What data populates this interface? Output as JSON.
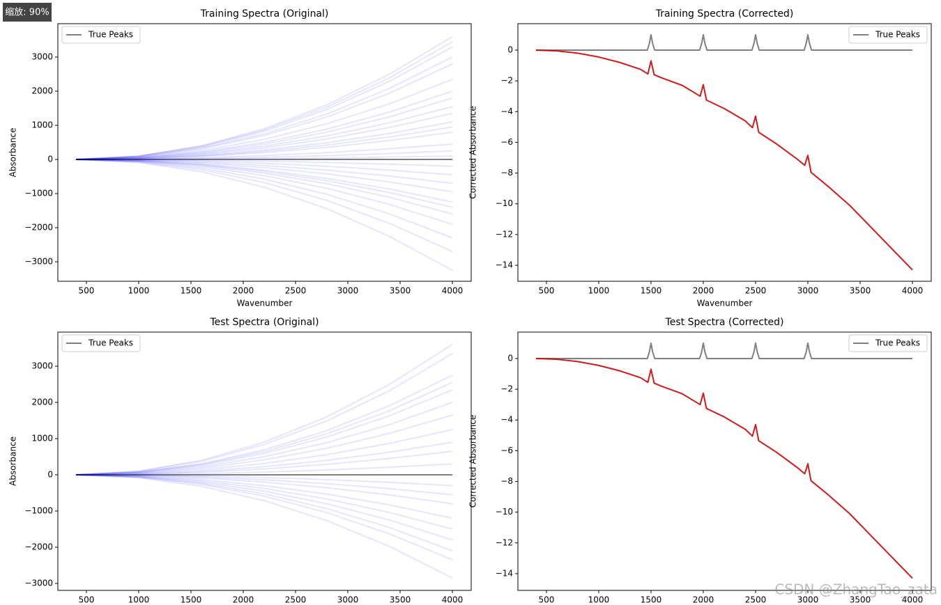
{
  "overlay": {
    "zoom": "缩放: 90%",
    "watermark": "CSDN @ZhangTao_zata"
  },
  "chart_data": [
    {
      "type": "line",
      "title": "Training Spectra (Original)",
      "xlabel": "Wavenumber",
      "ylabel": "Absorbance",
      "legend": "upper left",
      "xlim": [
        227,
        4180
      ],
      "ylim": [
        -3571,
        3980
      ],
      "xticks": [
        500,
        1000,
        1500,
        2000,
        2500,
        3000,
        3500,
        4000
      ],
      "yticks": [
        {
          "value": -3000,
          "label": "−3000"
        },
        {
          "value": -2000,
          "label": "−2000"
        },
        {
          "value": -1000,
          "label": "−1000"
        },
        0,
        1000,
        2000,
        3000
      ],
      "x": [
        400,
        1000,
        1600,
        2200,
        2800,
        3400,
        4000
      ],
      "series": [
        {
          "color": "#0000ff",
          "alpha": 0.1,
          "values": [
            0,
            100,
            400,
            900,
            1600,
            2500,
            3600
          ]
        },
        {
          "color": "#0000ff",
          "alpha": 0.1,
          "values": [
            0,
            96,
            383,
            863,
            1533,
            2396,
            3450
          ]
        },
        {
          "color": "#0000ff",
          "alpha": 0.1,
          "values": [
            0,
            92,
            367,
            825,
            1467,
            2292,
            3300
          ]
        },
        {
          "color": "#0000ff",
          "alpha": 0.1,
          "values": [
            0,
            83,
            333,
            750,
            1333,
            2083,
            3000
          ]
        },
        {
          "color": "#0000ff",
          "alpha": 0.1,
          "values": [
            0,
            78,
            311,
            700,
            1244,
            1944,
            2800
          ]
        },
        {
          "color": "#0000ff",
          "alpha": 0.1,
          "values": [
            0,
            65,
            261,
            588,
            1044,
            1632,
            2350
          ]
        },
        {
          "color": "#0000ff",
          "alpha": 0.1,
          "values": [
            0,
            56,
            222,
            500,
            889,
            1389,
            2000
          ]
        },
        {
          "color": "#0000ff",
          "alpha": 0.1,
          "values": [
            0,
            50,
            200,
            450,
            800,
            1250,
            1800
          ]
        },
        {
          "color": "#0000ff",
          "alpha": 0.1,
          "values": [
            0,
            43,
            172,
            388,
            689,
            1076,
            1550
          ]
        },
        {
          "color": "#0000ff",
          "alpha": 0.1,
          "values": [
            0,
            38,
            150,
            338,
            600,
            938,
            1350
          ]
        },
        {
          "color": "#0000ff",
          "alpha": 0.1,
          "values": [
            0,
            31,
            122,
            275,
            489,
            764,
            1100
          ]
        },
        {
          "color": "#0000ff",
          "alpha": 0.1,
          "values": [
            0,
            26,
            106,
            238,
            422,
            660,
            950
          ]
        },
        {
          "color": "#0000ff",
          "alpha": 0.1,
          "values": [
            0,
            22,
            89,
            200,
            356,
            556,
            800
          ]
        },
        {
          "color": "#0000ff",
          "alpha": 0.1,
          "values": [
            0,
            13,
            50,
            113,
            200,
            313,
            450
          ]
        },
        {
          "color": "#0000ff",
          "alpha": 0.1,
          "values": [
            0,
            7,
            28,
            63,
            111,
            174,
            250
          ]
        },
        {
          "color": "#0000ff",
          "alpha": 0.1,
          "values": [
            0,
            3,
            11,
            25,
            44,
            69,
            100
          ]
        },
        {
          "color": "#0000ff",
          "alpha": 0.1,
          "values": [
            0,
            -6,
            -22,
            -50,
            -89,
            -139,
            -200
          ]
        },
        {
          "color": "#0000ff",
          "alpha": 0.1,
          "values": [
            0,
            -13,
            -50,
            -113,
            -200,
            -313,
            -450
          ]
        },
        {
          "color": "#0000ff",
          "alpha": 0.1,
          "values": [
            0,
            -19,
            -78,
            -175,
            -311,
            -486,
            -700
          ]
        },
        {
          "color": "#0000ff",
          "alpha": 0.1,
          "values": [
            0,
            -26,
            -106,
            -238,
            -422,
            -660,
            -950
          ]
        },
        {
          "color": "#0000ff",
          "alpha": 0.1,
          "values": [
            0,
            -35,
            -139,
            -313,
            -556,
            -868,
            -1250
          ]
        },
        {
          "color": "#0000ff",
          "alpha": 0.1,
          "values": [
            0,
            -39,
            -156,
            -350,
            -622,
            -972,
            -1400
          ]
        },
        {
          "color": "#0000ff",
          "alpha": 0.1,
          "values": [
            0,
            -44,
            -178,
            -400,
            -711,
            -1111,
            -1600
          ]
        },
        {
          "color": "#0000ff",
          "alpha": 0.1,
          "values": [
            0,
            -53,
            -211,
            -475,
            -844,
            -1319,
            -1900
          ]
        },
        {
          "color": "#0000ff",
          "alpha": 0.1,
          "values": [
            0,
            -64,
            -256,
            -575,
            -1022,
            -1597,
            -2300
          ]
        },
        {
          "color": "#0000ff",
          "alpha": 0.1,
          "values": [
            0,
            -75,
            -300,
            -675,
            -1200,
            -1875,
            -2700
          ]
        },
        {
          "color": "#0000ff",
          "alpha": 0.1,
          "values": [
            0,
            -90,
            -361,
            -813,
            -1444,
            -2257,
            -3250
          ]
        },
        {
          "name": "True Peaks",
          "color": "#000000",
          "alpha": 0.5,
          "values": [
            0,
            0,
            0,
            0,
            0,
            0,
            0
          ]
        }
      ]
    },
    {
      "type": "line",
      "title": "Training Spectra (Corrected)",
      "xlabel": "Wavenumber",
      "ylabel": "Corrected Absorbance",
      "legend": "upper right",
      "xlim": [
        227,
        4180
      ],
      "ylim": [
        -15.04,
        1.72
      ],
      "xticks": [
        500,
        1000,
        1500,
        2000,
        2500,
        3000,
        3500,
        4000
      ],
      "yticks": [
        {
          "value": -14,
          "label": "−14"
        },
        {
          "value": -12,
          "label": "−12"
        },
        {
          "value": -10,
          "label": "−10"
        },
        {
          "value": -8,
          "label": "−8"
        },
        {
          "value": -6,
          "label": "−6"
        },
        {
          "value": -4,
          "label": "−4"
        },
        {
          "value": -2,
          "label": "−2"
        },
        0
      ],
      "series": [
        {
          "name": "True Peaks",
          "color": "#000000",
          "alpha": 0.5,
          "x": [
            400,
            1465,
            1485,
            1500,
            1515,
            1535,
            1965,
            1985,
            2000,
            2015,
            2035,
            2465,
            2485,
            2500,
            2515,
            2535,
            2965,
            2985,
            3000,
            3015,
            3035,
            4000
          ],
          "values": [
            0,
            0,
            0.45,
            1,
            0.45,
            0,
            0,
            0.45,
            1,
            0.45,
            0,
            0,
            0.45,
            1,
            0.45,
            0,
            0,
            0.45,
            1,
            0.45,
            0,
            0
          ]
        },
        {
          "color": "#cc0000",
          "alpha": 0.9,
          "x": [
            400,
            600,
            800,
            1000,
            1200,
            1400,
            1470,
            1500,
            1530,
            1600,
            1800,
            1970,
            2000,
            2030,
            2200,
            2400,
            2470,
            2500,
            2530,
            2700,
            2900,
            2970,
            3000,
            3030,
            3200,
            3400,
            3600,
            3800,
            4000
          ],
          "values": [
            0,
            -0.05,
            -0.2,
            -0.45,
            -0.8,
            -1.25,
            -1.55,
            -0.7,
            -1.6,
            -1.8,
            -2.3,
            -3.0,
            -2.25,
            -3.25,
            -3.8,
            -4.6,
            -5.05,
            -4.3,
            -5.35,
            -6.1,
            -7.1,
            -7.5,
            -6.85,
            -7.95,
            -8.9,
            -10.1,
            -11.5,
            -12.9,
            -14.3
          ]
        }
      ]
    },
    {
      "type": "line",
      "title": "Test Spectra (Original)",
      "ylabel": "Absorbance",
      "legend": "upper left",
      "xlim": [
        227,
        4180
      ],
      "ylim": [
        -3192,
        3942
      ],
      "xticks": [
        500,
        1000,
        1500,
        2000,
        2500,
        3000,
        3500,
        4000
      ],
      "yticks": [
        {
          "value": -3000,
          "label": "−3000"
        },
        {
          "value": -2000,
          "label": "−2000"
        },
        {
          "value": -1000,
          "label": "−1000"
        },
        0,
        1000,
        2000,
        3000
      ],
      "x": [
        400,
        1000,
        1600,
        2200,
        2800,
        3400,
        4000
      ],
      "series": [
        {
          "color": "#0000ff",
          "alpha": 0.1,
          "values": [
            0,
            100,
            400,
            900,
            1600,
            2500,
            3600
          ]
        },
        {
          "color": "#0000ff",
          "alpha": 0.1,
          "values": [
            0,
            93,
            372,
            838,
            1489,
            2326,
            3350
          ]
        },
        {
          "color": "#0000ff",
          "alpha": 0.1,
          "values": [
            0,
            76,
            306,
            688,
            1222,
            1910,
            2750
          ]
        },
        {
          "color": "#0000ff",
          "alpha": 0.1,
          "values": [
            0,
            71,
            283,
            638,
            1133,
            1771,
            2550
          ]
        },
        {
          "color": "#0000ff",
          "alpha": 0.1,
          "values": [
            0,
            65,
            261,
            588,
            1044,
            1632,
            2350
          ]
        },
        {
          "color": "#0000ff",
          "alpha": 0.1,
          "values": [
            0,
            56,
            222,
            500,
            889,
            1389,
            2000
          ]
        },
        {
          "color": "#0000ff",
          "alpha": 0.1,
          "values": [
            0,
            46,
            183,
            413,
            733,
            1146,
            1650
          ]
        },
        {
          "color": "#0000ff",
          "alpha": 0.1,
          "values": [
            0,
            35,
            139,
            313,
            556,
            868,
            1250
          ]
        },
        {
          "color": "#0000ff",
          "alpha": 0.1,
          "values": [
            0,
            25,
            100,
            225,
            400,
            625,
            900
          ]
        },
        {
          "color": "#0000ff",
          "alpha": 0.1,
          "values": [
            0,
            18,
            72,
            163,
            289,
            451,
            650
          ]
        },
        {
          "color": "#0000ff",
          "alpha": 0.1,
          "values": [
            0,
            8,
            33,
            75,
            133,
            208,
            300
          ]
        },
        {
          "color": "#0000ff",
          "alpha": 0.1,
          "values": [
            0,
            -8,
            -33,
            -75,
            -133,
            -208,
            -300
          ]
        },
        {
          "color": "#0000ff",
          "alpha": 0.1,
          "values": [
            0,
            -15,
            -61,
            -138,
            -244,
            -382,
            -550
          ]
        },
        {
          "color": "#0000ff",
          "alpha": 0.1,
          "values": [
            0,
            -22,
            -89,
            -200,
            -356,
            -556,
            -800
          ]
        },
        {
          "color": "#0000ff",
          "alpha": 0.1,
          "values": [
            0,
            -33,
            -133,
            -300,
            -533,
            -833,
            -1200
          ]
        },
        {
          "color": "#0000ff",
          "alpha": 0.1,
          "values": [
            0,
            -42,
            -167,
            -375,
            -667,
            -1042,
            -1500
          ]
        },
        {
          "color": "#0000ff",
          "alpha": 0.1,
          "values": [
            0,
            -50,
            -200,
            -450,
            -800,
            -1250,
            -1800
          ]
        },
        {
          "color": "#0000ff",
          "alpha": 0.1,
          "values": [
            0,
            -58,
            -233,
            -525,
            -933,
            -1458,
            -2100
          ]
        },
        {
          "color": "#0000ff",
          "alpha": 0.1,
          "values": [
            0,
            -65,
            -261,
            -588,
            -1044,
            -1632,
            -2350
          ]
        },
        {
          "color": "#0000ff",
          "alpha": 0.1,
          "values": [
            0,
            -79,
            -317,
            -713,
            -1267,
            -1979,
            -2850
          ]
        },
        {
          "name": "True Peaks",
          "color": "#000000",
          "alpha": 0.5,
          "values": [
            0,
            0,
            0,
            0,
            0,
            0,
            0
          ]
        }
      ]
    },
    {
      "type": "line",
      "title": "Test Spectra (Corrected)",
      "ylabel": "Corrected Absorbance",
      "legend": "upper right",
      "xlim": [
        227,
        4180
      ],
      "ylim": [
        -15.09,
        1.72
      ],
      "xticks": [
        500,
        1000,
        1500,
        2000,
        2500,
        3000,
        3500,
        4000
      ],
      "yticks": [
        {
          "value": -14,
          "label": "−14"
        },
        {
          "value": -12,
          "label": "−12"
        },
        {
          "value": -10,
          "label": "−10"
        },
        {
          "value": -8,
          "label": "−8"
        },
        {
          "value": -6,
          "label": "−6"
        },
        {
          "value": -4,
          "label": "−4"
        },
        {
          "value": -2,
          "label": "−2"
        },
        0
      ],
      "series": [
        {
          "name": "True Peaks",
          "color": "#000000",
          "alpha": 0.5,
          "x": [
            400,
            1465,
            1485,
            1500,
            1515,
            1535,
            1965,
            1985,
            2000,
            2015,
            2035,
            2465,
            2485,
            2500,
            2515,
            2535,
            2965,
            2985,
            3000,
            3015,
            3035,
            4000
          ],
          "values": [
            0,
            0,
            0.45,
            1,
            0.45,
            0,
            0,
            0.45,
            1,
            0.45,
            0,
            0,
            0.45,
            1,
            0.45,
            0,
            0,
            0.45,
            1,
            0.45,
            0,
            0
          ]
        },
        {
          "color": "#cc0000",
          "alpha": 0.9,
          "x": [
            400,
            600,
            800,
            1000,
            1200,
            1400,
            1470,
            1500,
            1530,
            1600,
            1800,
            1970,
            2000,
            2030,
            2200,
            2400,
            2470,
            2500,
            2530,
            2700,
            2900,
            2970,
            3000,
            3030,
            3200,
            3400,
            3600,
            3800,
            4000
          ],
          "values": [
            0,
            -0.05,
            -0.2,
            -0.45,
            -0.8,
            -1.25,
            -1.55,
            -0.7,
            -1.6,
            -1.8,
            -2.3,
            -3.0,
            -2.25,
            -3.25,
            -3.8,
            -4.6,
            -5.05,
            -4.3,
            -5.35,
            -6.1,
            -7.1,
            -7.5,
            -6.85,
            -7.95,
            -8.9,
            -10.1,
            -11.5,
            -12.9,
            -14.3
          ]
        }
      ]
    }
  ]
}
